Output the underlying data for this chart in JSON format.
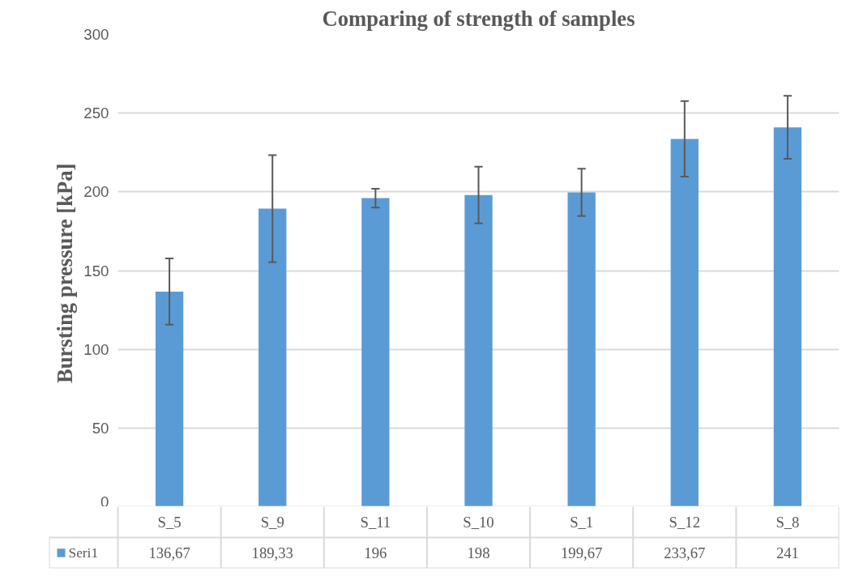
{
  "chart_data": {
    "type": "bar",
    "title": "Comparing of strength of samples",
    "ylabel": "Bursting  pressure [kPa]",
    "categories": [
      "S_5",
      "S_9",
      "S_11",
      "S_10",
      "S_1",
      "S_12",
      "S_8"
    ],
    "series": [
      {
        "name": "Seri1",
        "color": "#5b9bd5",
        "values": [
          136.67,
          189.33,
          196,
          198,
          199.67,
          233.67,
          241
        ],
        "value_labels": [
          "136,67",
          "189,33",
          "196",
          "198",
          "199,67",
          "233,67",
          "241"
        ],
        "errors": [
          21,
          34,
          6,
          18,
          15,
          24,
          20
        ]
      }
    ],
    "ylim": [
      0,
      300
    ],
    "yticks": [
      0,
      50,
      100,
      150,
      200,
      250,
      300
    ],
    "grid": "y",
    "legend": "bottom"
  }
}
